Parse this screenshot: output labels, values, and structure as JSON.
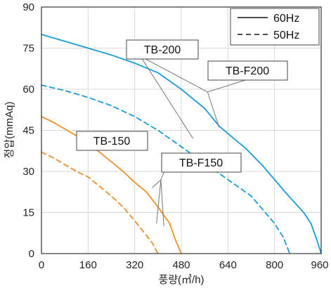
{
  "chart_data": {
    "type": "line",
    "xlabel": "풍량(㎥/h)",
    "ylabel": "정압(mmAq)",
    "xlim": [
      0,
      960
    ],
    "ylim": [
      0,
      90
    ],
    "x_ticks": [
      "0",
      "160",
      "320",
      "480",
      "640",
      "800",
      "960"
    ],
    "y_ticks": [
      "0",
      "15",
      "30",
      "45",
      "60",
      "75",
      "90"
    ],
    "grid": true,
    "legend_position": "top-right",
    "legend": [
      {
        "label": "60Hz",
        "style": "solid"
      },
      {
        "label": "50Hz",
        "style": "dashed"
      }
    ],
    "colors": {
      "tb200": "#1a9bd7",
      "tb150": "#e8932a",
      "grid": "#d8d8d8",
      "axis": "#333333",
      "callout": "#777777"
    },
    "series": [
      {
        "name": "TB-200",
        "style": "solid",
        "color": "#1a9bd7",
        "x": [
          0,
          80,
          160,
          240,
          320,
          400,
          480,
          560,
          610,
          660,
          700,
          760,
          840,
          900,
          925,
          945,
          960
        ],
        "y": [
          80,
          77.5,
          75,
          72.5,
          69.5,
          66,
          60,
          53,
          46.5,
          42,
          38.5,
          32,
          22,
          15,
          11,
          5,
          0
        ]
      },
      {
        "name": "TB-200",
        "style": "dashed",
        "color": "#1a9bd7",
        "x": [
          0,
          80,
          160,
          240,
          320,
          400,
          480,
          560,
          640,
          720,
          760,
          800,
          830,
          852
        ],
        "y": [
          61.5,
          59.5,
          57,
          54,
          50,
          45,
          39,
          33,
          27,
          21,
          16,
          11,
          6,
          0
        ]
      },
      {
        "name": "TB-150",
        "style": "solid",
        "color": "#e8932a",
        "x": [
          0,
          40,
          80,
          120,
          160,
          200,
          240,
          280,
          320,
          360,
          400,
          440,
          460,
          480
        ],
        "y": [
          50,
          48,
          45.5,
          43,
          40,
          37,
          33.5,
          30,
          26,
          22.5,
          17,
          11,
          5,
          0
        ]
      },
      {
        "name": "TB-150",
        "style": "dashed",
        "color": "#e8932a",
        "x": [
          0,
          40,
          80,
          120,
          160,
          200,
          240,
          280,
          320,
          350,
          380,
          400
        ],
        "y": [
          37,
          35,
          32.5,
          30,
          28,
          24.5,
          21,
          17,
          12,
          8,
          4,
          0
        ]
      }
    ],
    "annotations": [
      {
        "label": "TB-200",
        "points": [
          [
            340,
            72
          ],
          [
            570,
            59
          ],
          [
            520,
            42
          ]
        ]
      },
      {
        "label": "TB-F200",
        "points": [
          [
            570,
            59
          ],
          [
            610,
            46
          ],
          [
            720,
            64
          ]
        ]
      },
      {
        "label": "TB-150",
        "points": [
          [
            410,
            27
          ],
          [
            380,
            24
          ],
          [
            395,
            11
          ]
        ]
      },
      {
        "label": "TB-F150",
        "points": [
          [
            410,
            27
          ],
          [
            420,
            10
          ],
          [
            445,
            36
          ]
        ]
      }
    ]
  }
}
